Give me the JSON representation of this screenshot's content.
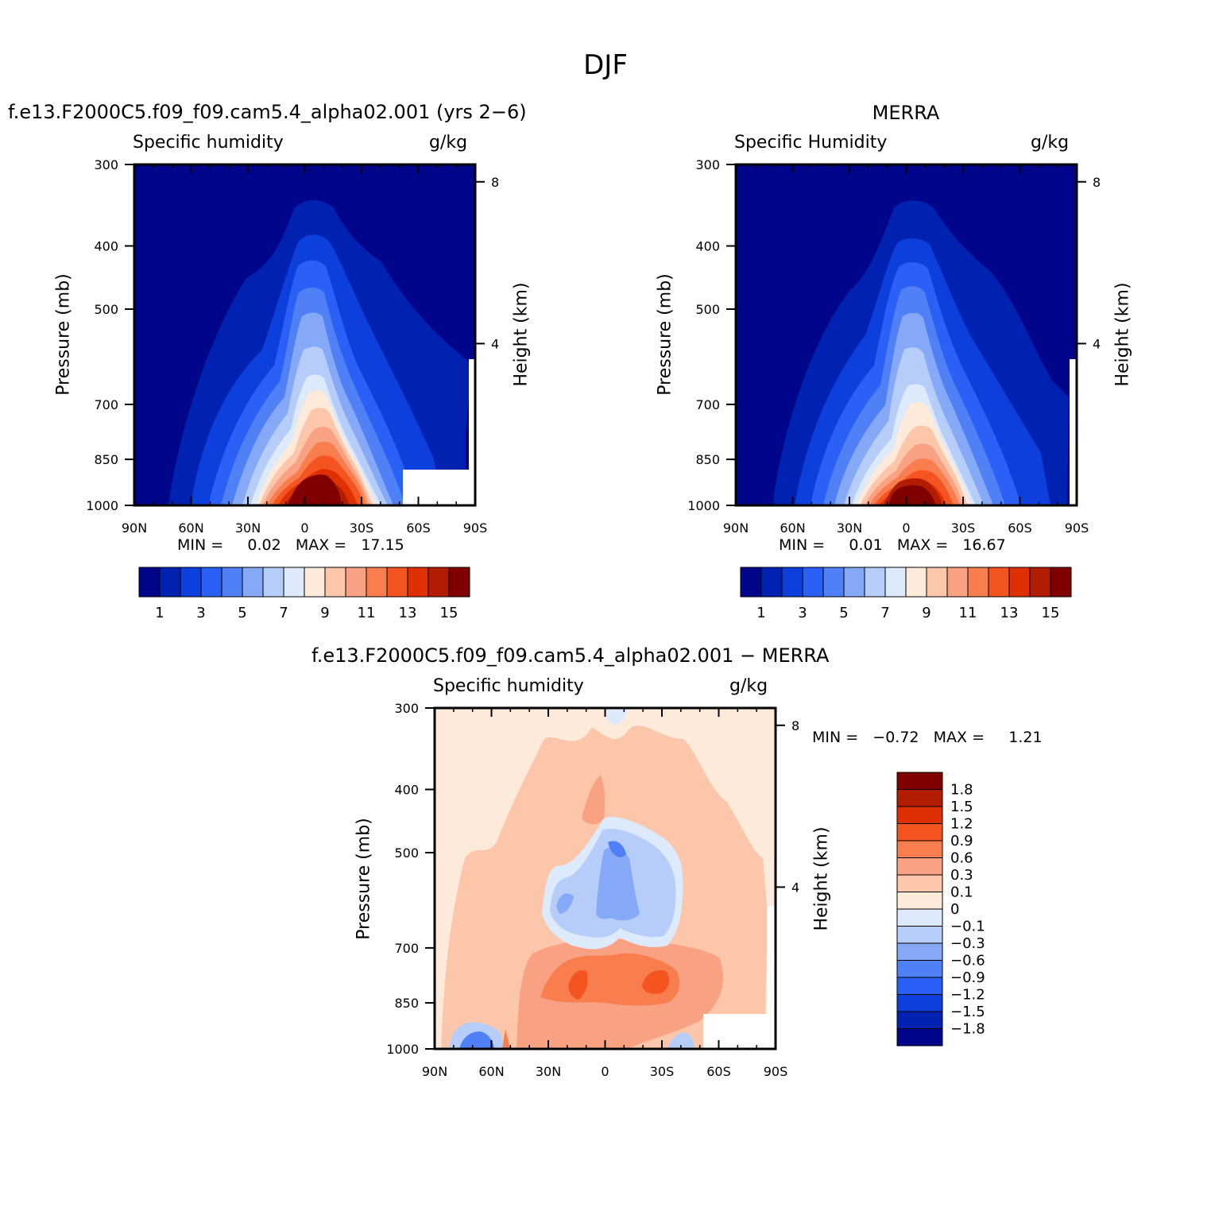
{
  "figure": {
    "title": "DJF"
  },
  "panels": [
    {
      "title": "f.e13.F2000C5.f09_f09.cam5.4_alpha02.001 (yrs 2−6)",
      "left_label": "Specific humidity",
      "right_label": "g/kg",
      "ylabel": "Pressure (mb)",
      "y2label": "Height (km)",
      "stats": {
        "min_label": "MIN =",
        "min": "0.02",
        "max_label": "MAX =",
        "max": "17.15"
      }
    },
    {
      "title": "MERRA",
      "left_label": "Specific Humidity",
      "right_label": "g/kg",
      "ylabel": "Pressure (mb)",
      "y2label": "Height (km)",
      "stats": {
        "min_label": "MIN =",
        "min": "0.01",
        "max_label": "MAX =",
        "max": "16.67"
      }
    },
    {
      "title": "f.e13.F2000C5.f09_f09.cam5.4_alpha02.001 − MERRA",
      "left_label": "Specific humidity",
      "right_label": "g/kg",
      "ylabel": "Pressure (mb)",
      "y2label": "Height (km)",
      "stats": {
        "min_label": "MIN =",
        "min": "−0.72",
        "max_label": "MAX =",
        "max": "1.21"
      }
    }
  ],
  "chart_data": [
    {
      "type": "heatmap",
      "panel": "model",
      "x_ticks": [
        "90N",
        "60N",
        "30N",
        "0",
        "30S",
        "60S",
        "90S"
      ],
      "y_ticks": [
        "300",
        "400",
        "500",
        "700",
        "850",
        "1000"
      ],
      "y2_ticks": [
        "8",
        "4"
      ],
      "colorbar": {
        "colors": [
          "#00058a",
          "#0122b0",
          "#0d3fdd",
          "#2a60f5",
          "#4f80f6",
          "#85a9f7",
          "#b6cdf9",
          "#dceafb",
          "#fdeadb",
          "#fcc6aa",
          "#f9a283",
          "#f87e4f",
          "#f4541f",
          "#df3004",
          "#b21d01",
          "#800000"
        ],
        "labels": [
          "1",
          "3",
          "5",
          "7",
          "9",
          "11",
          "13",
          "15"
        ]
      },
      "max_value": 17.15,
      "min_value": 0.02
    },
    {
      "type": "heatmap",
      "panel": "merra",
      "x_ticks": [
        "90N",
        "60N",
        "30N",
        "0",
        "30S",
        "60S",
        "90S"
      ],
      "y_ticks": [
        "300",
        "400",
        "500",
        "700",
        "850",
        "1000"
      ],
      "y2_ticks": [
        "8",
        "4"
      ],
      "colorbar": {
        "colors": [
          "#00058a",
          "#0122b0",
          "#0d3fdd",
          "#2a60f5",
          "#4f80f6",
          "#85a9f7",
          "#b6cdf9",
          "#dceafb",
          "#fdeadb",
          "#fcc6aa",
          "#f9a283",
          "#f87e4f",
          "#f4541f",
          "#df3004",
          "#b21d01",
          "#800000"
        ],
        "labels": [
          "1",
          "3",
          "5",
          "7",
          "9",
          "11",
          "13",
          "15"
        ]
      },
      "max_value": 16.67,
      "min_value": 0.01
    },
    {
      "type": "heatmap",
      "panel": "difference",
      "x_ticks": [
        "90N",
        "60N",
        "30N",
        "0",
        "30S",
        "60S",
        "90S"
      ],
      "y_ticks": [
        "300",
        "400",
        "500",
        "700",
        "850",
        "1000"
      ],
      "y2_ticks": [
        "8",
        "4"
      ],
      "colorbar": {
        "colors": [
          "#800000",
          "#b21d01",
          "#df3004",
          "#f4541f",
          "#f87e4f",
          "#f9a283",
          "#fcc6aa",
          "#fdeadb",
          "#dceafb",
          "#b6cdf9",
          "#85a9f7",
          "#4f80f6",
          "#2a60f5",
          "#0d3fdd",
          "#0122b0",
          "#00058a"
        ],
        "labels": [
          "1.8",
          "1.5",
          "1.2",
          "0.9",
          "0.6",
          "0.3",
          "0.1",
          "0",
          "−0.1",
          "−0.3",
          "−0.6",
          "−0.9",
          "−1.2",
          "−1.5",
          "−1.8"
        ]
      },
      "max_value": 1.21,
      "min_value": -0.72
    }
  ]
}
